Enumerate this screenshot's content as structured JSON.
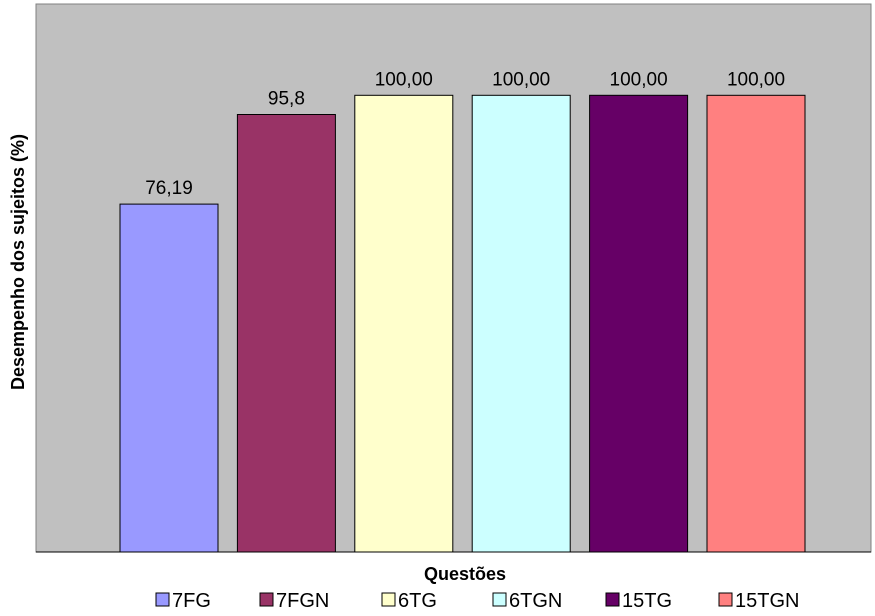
{
  "chart_data": {
    "type": "bar",
    "categories": [
      "7FG",
      "7FGN",
      "6TG",
      "6TGN",
      "15TG",
      "15TGN"
    ],
    "values": [
      76.19,
      95.8,
      100.0,
      100.0,
      100.0,
      100.0
    ],
    "data_labels": [
      "76,19",
      "95,8",
      "100,00",
      "100,00",
      "100,00",
      "100,00"
    ],
    "colors": [
      "#9999ff",
      "#993366",
      "#ffffcc",
      "#ccffff",
      "#660066",
      "#ff8080"
    ],
    "plot_background": "#c0c0c0",
    "title": "",
    "xlabel": "Questões",
    "ylabel": "Desempenho dos sujeitos (%)",
    "ylim": [
      0,
      120
    ],
    "grid": false,
    "legend": {
      "position": "bottom",
      "entries": [
        "7FG",
        "7FGN",
        "6TG",
        "6TGN",
        "15TG",
        "15TGN"
      ]
    }
  }
}
